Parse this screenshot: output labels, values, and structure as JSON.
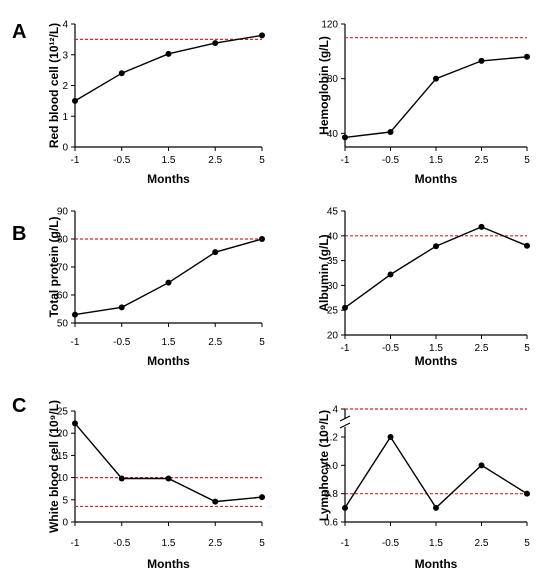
{
  "panel_letters": [
    "A",
    "B",
    "C"
  ],
  "chart_data": [
    {
      "type": "line",
      "panel": "A",
      "x": [
        "-1",
        "-0.5",
        "1.5",
        "2.5",
        "5"
      ],
      "values": [
        1.5,
        2.4,
        3.03,
        3.38,
        3.63
      ],
      "xlabel": "Months",
      "ylabel": "Red blood cell (10¹²/L)",
      "ylim": [
        0,
        4
      ],
      "yticks": [
        0,
        1,
        2,
        3,
        4
      ],
      "reference_lines": [
        3.5
      ],
      "line_color": "#000000",
      "reference_color": "#d62728"
    },
    {
      "type": "line",
      "panel": "A",
      "x": [
        "-1",
        "-0.5",
        "1.5",
        "2.5",
        "5"
      ],
      "values": [
        37,
        41,
        80,
        93,
        96
      ],
      "xlabel": "Months",
      "ylabel": "Hemoglobin (g/L)",
      "ylim": [
        30,
        120
      ],
      "yticks": [
        40,
        80,
        120
      ],
      "reference_lines": [
        110
      ],
      "line_color": "#000000",
      "reference_color": "#d62728"
    },
    {
      "type": "line",
      "panel": "B",
      "x": [
        "-1",
        "-0.5",
        "1.5",
        "2.5",
        "5"
      ],
      "values": [
        53,
        55.6,
        64.4,
        75.3,
        80
      ],
      "xlabel": "Months",
      "ylabel": "Total protein (g/L)",
      "ylim": [
        50,
        90
      ],
      "yticks": [
        50,
        60,
        70,
        80,
        90
      ],
      "reference_lines": [
        80
      ],
      "line_color": "#000000",
      "reference_color": "#d62728"
    },
    {
      "type": "line",
      "panel": "B",
      "x": [
        "-1",
        "-0.5",
        "1.5",
        "2.5",
        "5"
      ],
      "values": [
        25.5,
        32.2,
        37.9,
        41.8,
        38
      ],
      "xlabel": "Months",
      "ylabel": "Albumin (g/L)",
      "ylim": [
        20,
        45
      ],
      "yticks": [
        20,
        25,
        30,
        35,
        40,
        45
      ],
      "reference_lines": [
        40
      ],
      "line_color": "#000000",
      "reference_color": "#d62728"
    },
    {
      "type": "line",
      "panel": "C",
      "x": [
        "-1",
        "-0.5",
        "1.5",
        "2.5",
        "5"
      ],
      "values": [
        22.2,
        9.8,
        9.8,
        4.6,
        5.6
      ],
      "xlabel": "Months",
      "ylabel": "White blood cell (10⁹/L)",
      "ylim": [
        0,
        25
      ],
      "yticks": [
        0,
        5,
        10,
        15,
        20,
        25
      ],
      "reference_lines": [
        3.5,
        10
      ],
      "line_color": "#000000",
      "reference_color": "#d62728"
    },
    {
      "type": "line",
      "panel": "C",
      "x": [
        "-1",
        "-0.5",
        "1.5",
        "2.5",
        "5"
      ],
      "values": [
        0.7,
        1.2,
        0.7,
        1.0,
        0.8
      ],
      "xlabel": "Months",
      "ylabel": "Lymphocyte (10⁹/L)",
      "ylim": [
        0.6,
        1.2
      ],
      "yticks": [
        0.6,
        0.8,
        1.0,
        1.2
      ],
      "ytick_labels": [
        "0.6",
        "0.8",
        "1.0",
        "1.2"
      ],
      "broken_axis_upper_tick": "4",
      "reference_lines": [
        0.8,
        4
      ],
      "line_color": "#000000",
      "reference_color": "#d62728"
    }
  ]
}
